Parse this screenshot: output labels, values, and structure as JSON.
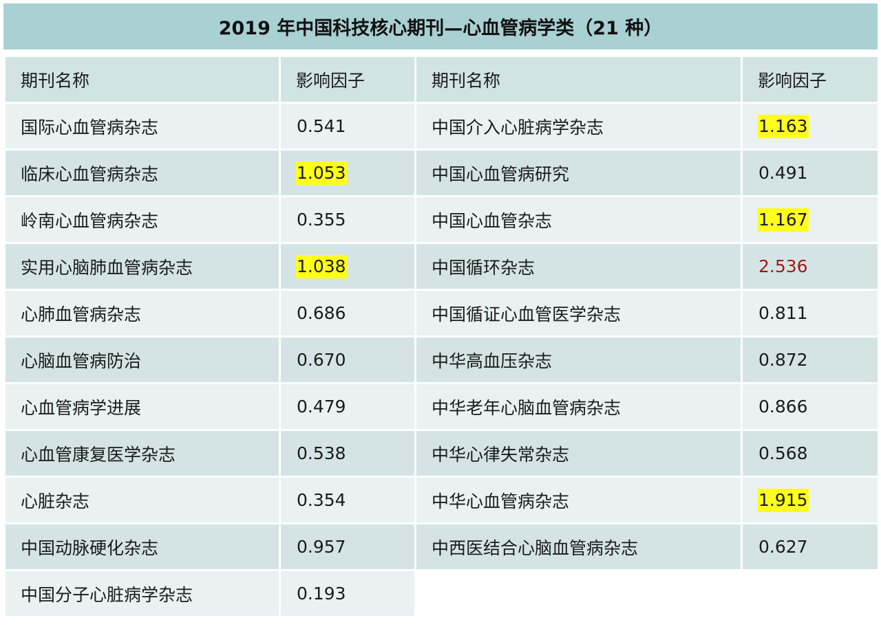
{
  "title": "2019 年中国科技核心期刊—心血管病学类（21 种）",
  "headers": {
    "name": "期刊名称",
    "if": "影响因子"
  },
  "colors": {
    "title_bg": "#a9d0d3",
    "highlight": "#ffff1a",
    "max_value": "#9a1a1a"
  },
  "rows": [
    {
      "left": {
        "name": "国际心血管病杂志",
        "if": "0.541",
        "style": ""
      },
      "right": {
        "name": "中国介入心脏病学杂志",
        "if": "1.163",
        "style": "hl"
      }
    },
    {
      "left": {
        "name": "临床心血管病杂志",
        "if": "1.053",
        "style": "hl"
      },
      "right": {
        "name": "中国心血管病研究",
        "if": "0.491",
        "style": ""
      }
    },
    {
      "left": {
        "name": "岭南心血管病杂志",
        "if": "0.355",
        "style": ""
      },
      "right": {
        "name": "中国心血管杂志",
        "if": "1.167",
        "style": "hl"
      }
    },
    {
      "left": {
        "name": "实用心脑肺血管病杂志",
        "if": "1.038",
        "style": "hl"
      },
      "right": {
        "name": "中国循环杂志",
        "if": "2.536",
        "style": "red"
      }
    },
    {
      "left": {
        "name": "心肺血管病杂志",
        "if": "0.686",
        "style": ""
      },
      "right": {
        "name": "中国循证心血管医学杂志",
        "if": "0.811",
        "style": ""
      }
    },
    {
      "left": {
        "name": "心脑血管病防治",
        "if": "0.670",
        "style": ""
      },
      "right": {
        "name": "中华高血压杂志",
        "if": "0.872",
        "style": ""
      }
    },
    {
      "left": {
        "name": "心血管病学进展",
        "if": "0.479",
        "style": ""
      },
      "right": {
        "name": "中华老年心脑血管病杂志",
        "if": "0.866",
        "style": ""
      }
    },
    {
      "left": {
        "name": "心血管康复医学杂志",
        "if": "0.538",
        "style": ""
      },
      "right": {
        "name": "中华心律失常杂志",
        "if": "0.568",
        "style": ""
      }
    },
    {
      "left": {
        "name": "心脏杂志",
        "if": "0.354",
        "style": ""
      },
      "right": {
        "name": "中华心血管病杂志",
        "if": "1.915",
        "style": "hl"
      }
    },
    {
      "left": {
        "name": "中国动脉硬化杂志",
        "if": "0.957",
        "style": ""
      },
      "right": {
        "name": "中西医结合心脑血管病杂志",
        "if": "0.627",
        "style": ""
      }
    },
    {
      "left": {
        "name": "中国分子心脏病学杂志",
        "if": "0.193",
        "style": ""
      },
      "right": null
    }
  ]
}
